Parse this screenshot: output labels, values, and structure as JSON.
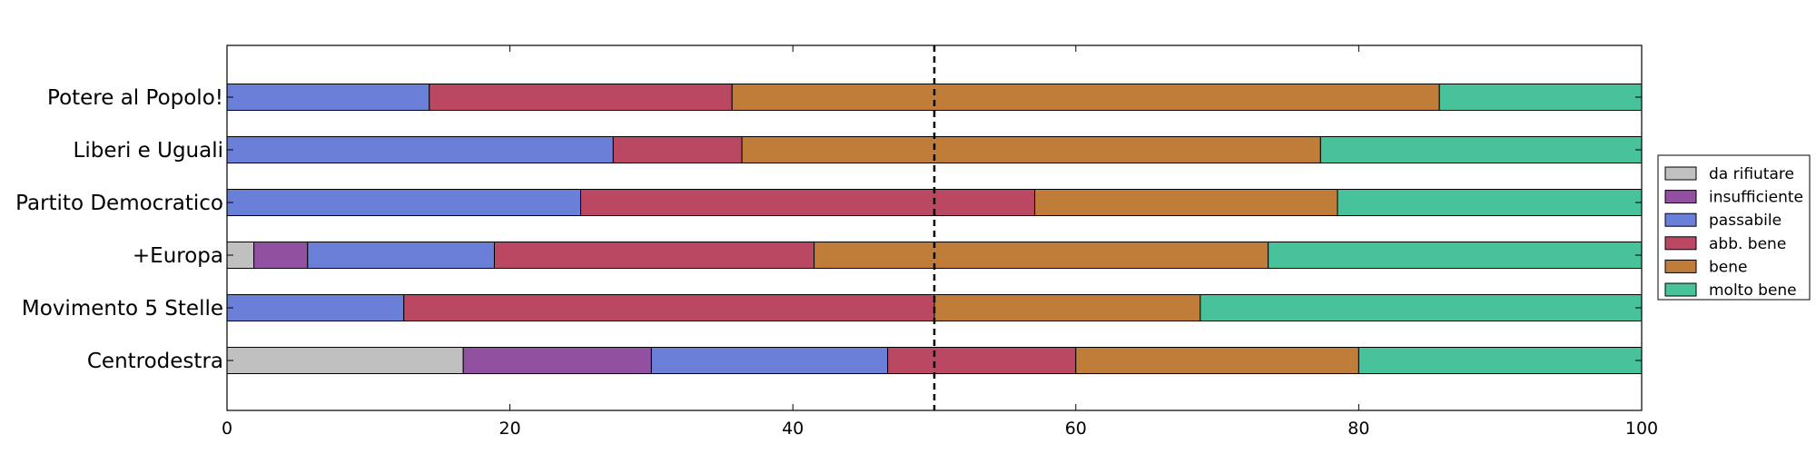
{
  "chart_data": {
    "type": "bar",
    "orientation": "horizontal",
    "stacked": true,
    "categories": [
      "Potere al Popolo!",
      "Liberi e Uguali",
      "Partito Democratico",
      "+Europa",
      "Movimento 5 Stelle",
      "Centrodestra"
    ],
    "series": [
      {
        "name": "da rifiutare",
        "color": "#c0c0c0",
        "values": [
          0,
          0,
          0,
          1.9,
          0,
          16.7
        ]
      },
      {
        "name": "insufficiente",
        "color": "#9150a0",
        "values": [
          0,
          0,
          0,
          3.8,
          0,
          13.3
        ]
      },
      {
        "name": "passabile",
        "color": "#6a7fd8",
        "values": [
          14.3,
          27.3,
          25.0,
          13.2,
          12.5,
          16.7
        ]
      },
      {
        "name": "abb. bene",
        "color": "#bb4862",
        "values": [
          21.4,
          9.1,
          32.1,
          22.6,
          37.5,
          13.3
        ]
      },
      {
        "name": "bene",
        "color": "#c07d3a",
        "values": [
          50.0,
          40.9,
          21.4,
          32.1,
          18.8,
          20.0
        ]
      },
      {
        "name": "molto bene",
        "color": "#48c29a",
        "values": [
          14.3,
          22.7,
          21.5,
          26.4,
          31.2,
          20.0
        ]
      }
    ],
    "xlim": [
      0,
      100
    ],
    "xticks": [
      0,
      20,
      40,
      60,
      80,
      100
    ],
    "reference_line": 50,
    "title": "",
    "xlabel": "",
    "ylabel": "",
    "grid": false,
    "legend_position": "right"
  }
}
